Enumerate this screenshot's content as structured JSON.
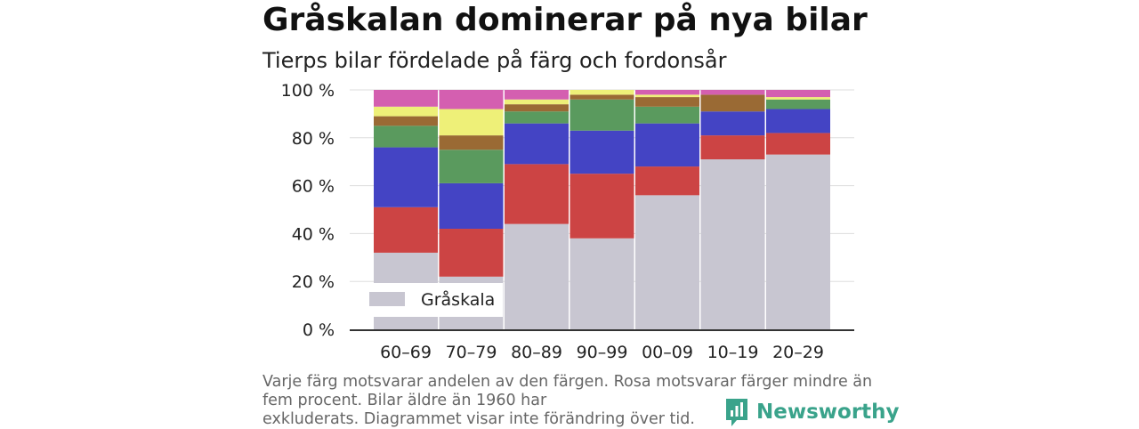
{
  "header": {
    "title": "Gråskalan dominerar på nya bilar",
    "subtitle": "Tierps bilar fördelade på färg och fordonsår"
  },
  "note": {
    "line1": "Varje färg motsvarar andelen av den färgen. Rosa motsvarar färger mindre än",
    "line2": "fem procent. Bilar äldre än 1960 har",
    "line3": "exkluderats. Diagrammet visar inte förändring över tid."
  },
  "brand": {
    "name": "Newsworthy",
    "icon": "newsworthy-logo-icon",
    "color": "#3aa38b"
  },
  "chart_data": {
    "type": "bar",
    "stacked": true,
    "categories": [
      "60–69",
      "70–79",
      "80–89",
      "90–99",
      "00–09",
      "10–19",
      "20–29"
    ],
    "y_ticks": [
      "0 %",
      "20 %",
      "40 %",
      "60 %",
      "80 %",
      "100 %"
    ],
    "ylim": [
      0,
      100
    ],
    "grid": true,
    "legend": {
      "placement": "bottom-left",
      "entries": [
        "Gråskala"
      ]
    },
    "series": [
      {
        "name": "Gråskala",
        "color": "#c8c6d1",
        "values": [
          32,
          22,
          44,
          38,
          56,
          71,
          73
        ]
      },
      {
        "color": "#cc4444",
        "values": [
          19,
          20,
          25,
          27,
          12,
          10,
          9
        ]
      },
      {
        "color": "#4444c4",
        "values": [
          25,
          19,
          17,
          18,
          18,
          10,
          10
        ]
      },
      {
        "color": "#5a9a5e",
        "values": [
          9,
          14,
          5,
          13,
          7,
          0,
          4
        ]
      },
      {
        "color": "#9a6a34",
        "values": [
          4,
          6,
          3,
          2,
          4,
          7,
          0
        ]
      },
      {
        "color": "#eef078",
        "values": [
          4,
          11,
          2,
          2,
          1,
          0,
          1
        ]
      },
      {
        "color": "#d45fb0",
        "values": [
          7,
          8,
          4,
          0,
          2,
          2,
          3
        ]
      }
    ]
  }
}
